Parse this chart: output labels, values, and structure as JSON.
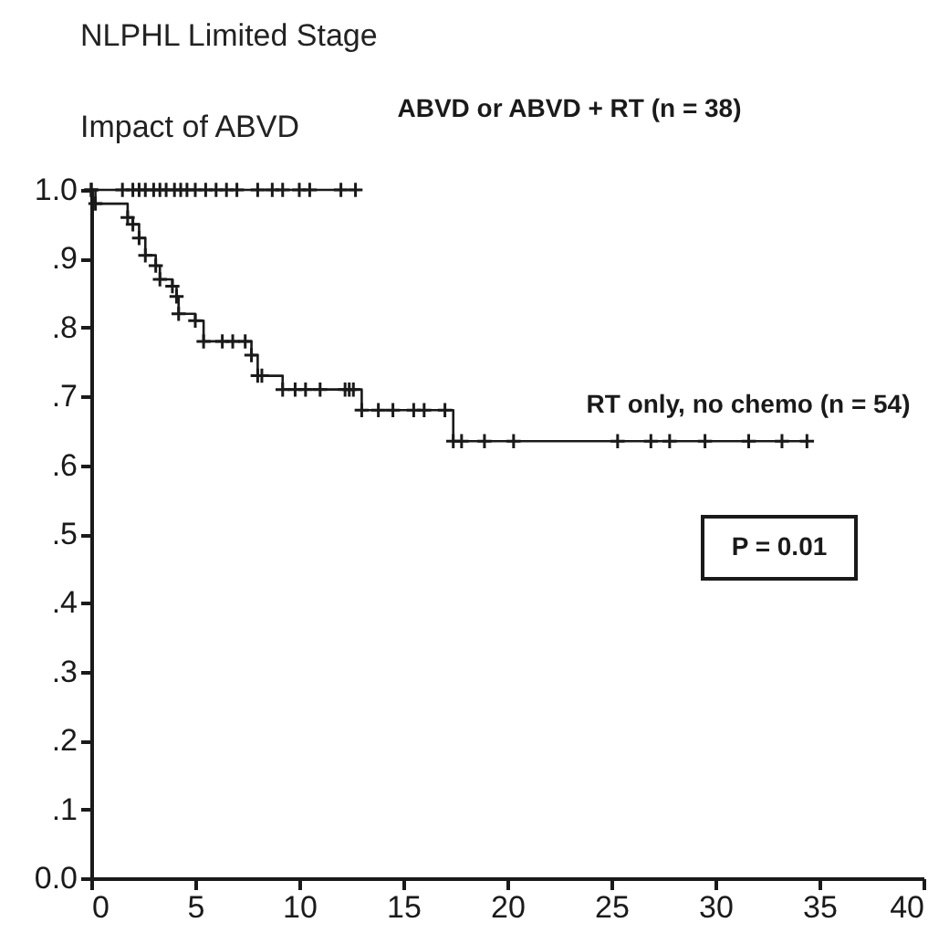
{
  "chart_data": {
    "type": "step",
    "title": "NLPHL Limited Stage",
    "subtitle": "Impact of ABVD",
    "annotations": [
      "P = 0.01"
    ],
    "xlim": [
      0,
      40
    ],
    "xticks": [
      0,
      5,
      10,
      15,
      20,
      25,
      30,
      35,
      40
    ],
    "ylim": [
      0,
      1
    ],
    "yticks": [
      {
        "value": 0,
        "label": "0.0"
      },
      {
        "value": 0.1,
        "label": ".1"
      },
      {
        "value": 0.2,
        "label": ".2"
      },
      {
        "value": 0.3,
        "label": ".3"
      },
      {
        "value": 0.4,
        "label": ".4"
      },
      {
        "value": 0.5,
        "label": ".5"
      },
      {
        "value": 0.6,
        "label": ".6"
      },
      {
        "value": 0.7,
        "label": ".7"
      },
      {
        "value": 0.8,
        "label": ".8"
      },
      {
        "value": 0.9,
        "label": ".9"
      },
      {
        "value": 1,
        "label": "1.0"
      }
    ],
    "grid": false,
    "marker": "cross",
    "line_style": "solid",
    "series": [
      {
        "name": "ABVD or ABVD + RT (n = 38)",
        "color": "#1a1a1a",
        "x": [
          0,
          1.5,
          2,
          2.3,
          2.6,
          3,
          3.3,
          3.6,
          4,
          4.3,
          4.6,
          5,
          5.5,
          6,
          6.5,
          7,
          8,
          8.7,
          9.2,
          10,
          10.5,
          12,
          12.7
        ],
        "values": [
          1,
          1,
          1,
          1,
          1,
          1,
          1,
          1,
          1,
          1,
          1,
          1,
          1,
          1,
          1,
          1,
          1,
          1,
          1,
          1,
          1,
          1,
          1
        ]
      },
      {
        "name": "RT only, no chemo (n = 54)",
        "color": "#1a1a1a",
        "x": [
          0,
          0.2,
          1.75,
          2,
          2.3,
          2.6,
          3.1,
          3.3,
          3.9,
          4.1,
          4.2,
          5.0,
          5.4,
          6.3,
          6.8,
          7.4,
          7.7,
          8.0,
          8.2,
          9.2,
          9.8,
          10.3,
          11,
          12.2,
          12.4,
          12.6,
          13.0,
          13.8,
          14.5,
          15.5,
          16,
          17,
          17.4,
          17.8,
          18.9,
          20.3,
          25.3,
          26.9,
          27.8,
          29.5,
          31.6,
          33.2,
          34.4
        ],
        "values": [
          1,
          0.98,
          0.96,
          0.95,
          0.93,
          0.905,
          0.89,
          0.87,
          0.86,
          0.845,
          0.82,
          0.81,
          0.78,
          0.78,
          0.78,
          0.78,
          0.76,
          0.73,
          0.73,
          0.71,
          0.71,
          0.71,
          0.71,
          0.71,
          0.71,
          0.71,
          0.68,
          0.68,
          0.68,
          0.68,
          0.68,
          0.68,
          0.635,
          0.635,
          0.635,
          0.635,
          0.635,
          0.635,
          0.635,
          0.635,
          0.635,
          0.635,
          0.635
        ]
      }
    ]
  }
}
